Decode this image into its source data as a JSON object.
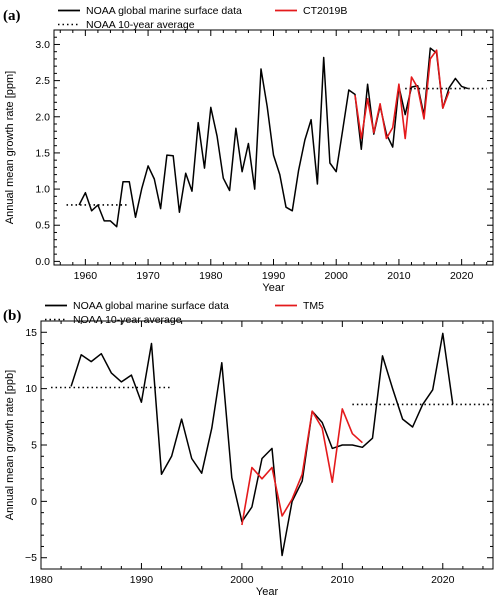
{
  "chart_data": [
    {
      "type": "line",
      "panel_label": "(a)",
      "xlabel": "Year",
      "ylabel": "Annual mean growth rate [ppm]",
      "xlim": [
        1955,
        2025
      ],
      "ylim": [
        -0.05,
        3.2
      ],
      "xticks": [
        1960,
        1970,
        1980,
        1990,
        2000,
        2010,
        2020
      ],
      "yticks": [
        0.0,
        0.5,
        1.0,
        1.5,
        2.0,
        2.5,
        3.0
      ],
      "ytick_labels": [
        "0.0",
        "0.5",
        "1.0",
        "1.5",
        "2.0",
        "2.5",
        "3.0"
      ],
      "legend": {
        "placement": "top",
        "entries": [
          {
            "label": "NOAA global marine surface data",
            "color": "#000000",
            "style": "solid"
          },
          {
            "label": "CT2019B",
            "color": "#e41a1c",
            "style": "solid"
          },
          {
            "label": "NOAA 10-year average",
            "color": "#000000",
            "style": "dotted"
          }
        ]
      },
      "series": [
        {
          "name": "NOAA global marine surface data",
          "color": "#000000",
          "style": "solid",
          "x": [
            1959,
            1960,
            1961,
            1962,
            1963,
            1964,
            1965,
            1966,
            1967,
            1968,
            1969,
            1970,
            1971,
            1972,
            1973,
            1974,
            1975,
            1976,
            1977,
            1978,
            1979,
            1980,
            1981,
            1982,
            1983,
            1984,
            1985,
            1986,
            1987,
            1988,
            1989,
            1990,
            1991,
            1992,
            1993,
            1994,
            1995,
            1996,
            1997,
            1998,
            1999,
            2000,
            2001,
            2002,
            2003,
            2004,
            2005,
            2006,
            2007,
            2008,
            2009,
            2010,
            2011,
            2012,
            2013,
            2014,
            2015,
            2016,
            2017,
            2018,
            2019,
            2020,
            2021
          ],
          "y": [
            0.78,
            0.95,
            0.7,
            0.78,
            0.56,
            0.56,
            0.48,
            1.1,
            1.1,
            0.61,
            1.01,
            1.32,
            1.14,
            0.73,
            1.47,
            1.46,
            0.68,
            1.22,
            0.97,
            1.92,
            1.29,
            2.13,
            1.73,
            1.15,
            0.98,
            1.84,
            1.24,
            1.63,
            1.0,
            2.66,
            2.14,
            1.47,
            1.2,
            0.75,
            0.7,
            1.26,
            1.68,
            1.96,
            1.07,
            2.82,
            1.36,
            1.24,
            1.8,
            2.37,
            2.31,
            1.55,
            2.45,
            1.76,
            2.15,
            1.76,
            1.58,
            2.42,
            2.03,
            2.41,
            2.43,
            2.02,
            2.95,
            2.88,
            2.12,
            2.4,
            2.53,
            2.42,
            2.39
          ]
        },
        {
          "name": "CT2019B",
          "color": "#e41a1c",
          "style": "solid",
          "x": [
            2003,
            2004,
            2005,
            2006,
            2007,
            2008,
            2009,
            2010,
            2011,
            2012,
            2013,
            2014,
            2015,
            2016,
            2017,
            2018
          ],
          "y": [
            2.3,
            1.7,
            2.25,
            1.78,
            2.18,
            1.7,
            1.85,
            2.45,
            1.7,
            2.55,
            2.4,
            1.97,
            2.8,
            2.92,
            2.12,
            2.35
          ]
        },
        {
          "name": "NOAA 10-year average",
          "color": "#000000",
          "style": "dotted",
          "segments": [
            {
              "x": [
                1957,
                1967
              ],
              "y": [
                0.78,
                0.78
              ]
            },
            {
              "x": [
                2011,
                2024
              ],
              "y": [
                2.39,
                2.39
              ]
            }
          ]
        }
      ]
    },
    {
      "type": "line",
      "panel_label": "(b)",
      "xlabel": "Year",
      "ylabel": "Annual mean growth rate [ppb]",
      "xlim": [
        1980,
        2025
      ],
      "ylim": [
        -6,
        16
      ],
      "xticks": [
        1980,
        1990,
        2000,
        2010,
        2020
      ],
      "yticks": [
        -5,
        0,
        5,
        10,
        15
      ],
      "ytick_labels": [
        "−5",
        "0",
        "5",
        "10",
        "15"
      ],
      "legend": {
        "placement": "top",
        "entries": [
          {
            "label": "NOAA global marine surface data",
            "color": "#000000",
            "style": "solid"
          },
          {
            "label": "TM5",
            "color": "#e41a1c",
            "style": "solid"
          },
          {
            "label": "NOAA 10-year average",
            "color": "#000000",
            "style": "dotted"
          }
        ]
      },
      "series": [
        {
          "name": "NOAA global marine surface data",
          "color": "#000000",
          "style": "solid",
          "x": [
            1983,
            1984,
            1985,
            1986,
            1987,
            1988,
            1989,
            1990,
            1991,
            1992,
            1993,
            1994,
            1995,
            1996,
            1997,
            1998,
            1999,
            2000,
            2001,
            2002,
            2003,
            2004,
            2005,
            2006,
            2007,
            2008,
            2009,
            2010,
            2011,
            2012,
            2013,
            2014,
            2015,
            2016,
            2017,
            2018,
            2019,
            2020,
            2021
          ],
          "y": [
            10.2,
            13.0,
            12.4,
            13.1,
            11.4,
            10.6,
            11.2,
            8.8,
            14.0,
            2.4,
            4.0,
            7.3,
            3.8,
            2.5,
            6.5,
            12.3,
            2.1,
            -1.8,
            -0.5,
            3.8,
            4.7,
            -4.8,
            0.0,
            1.8,
            8.0,
            7.0,
            4.7,
            5.0,
            5.0,
            4.8,
            5.6,
            12.9,
            10.0,
            7.3,
            6.6,
            8.6,
            9.9,
            14.9,
            8.6
          ]
        },
        {
          "name": "TM5",
          "color": "#e41a1c",
          "style": "solid",
          "x": [
            2000,
            2001,
            2002,
            2003,
            2004,
            2005,
            2006,
            2007,
            2008,
            2009,
            2010,
            2011,
            2012
          ],
          "y": [
            -2.1,
            3.0,
            2.0,
            3.0,
            -1.3,
            0.2,
            2.4,
            8.0,
            6.5,
            1.7,
            8.2,
            6.0,
            5.2
          ]
        },
        {
          "name": "NOAA 10-year average",
          "color": "#000000",
          "style": "dotted",
          "segments": [
            {
              "x": [
                1981,
                1993
              ],
              "y": [
                10.1,
                10.1
              ]
            },
            {
              "x": [
                2011,
                2025
              ],
              "y": [
                8.6,
                8.6
              ]
            }
          ]
        }
      ]
    }
  ]
}
